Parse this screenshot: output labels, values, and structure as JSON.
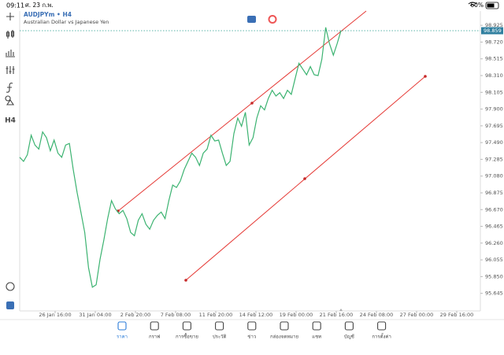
{
  "status": {
    "time": "09:11",
    "date": "ศ. 23 ก.พ.",
    "battery": "60%"
  },
  "chart_data": {
    "type": "line",
    "symbol": "AUDJPYm • H4",
    "description": "Australian Dollar vs Japanese Yen",
    "timeframe": "H4",
    "color": "#3cb371",
    "values": [
      97.31,
      97.26,
      97.34,
      97.58,
      97.46,
      97.41,
      97.62,
      97.55,
      97.39,
      97.52,
      97.36,
      97.31,
      97.46,
      97.48,
      97.16,
      96.88,
      96.64,
      96.39,
      95.96,
      95.72,
      95.75,
      96.06,
      96.3,
      96.56,
      96.78,
      96.68,
      96.62,
      96.66,
      96.56,
      96.39,
      96.35,
      96.54,
      96.62,
      96.49,
      96.43,
      96.54,
      96.6,
      96.64,
      96.56,
      96.78,
      96.97,
      96.94,
      97.02,
      97.16,
      97.26,
      97.36,
      97.31,
      97.21,
      97.36,
      97.41,
      97.58,
      97.51,
      97.52,
      97.36,
      97.21,
      97.26,
      97.6,
      97.79,
      97.69,
      97.86,
      97.46,
      97.55,
      97.79,
      97.94,
      97.89,
      98.03,
      98.13,
      98.06,
      98.1,
      98.03,
      98.13,
      98.08,
      98.27,
      98.46,
      98.39,
      98.32,
      98.42,
      98.32,
      98.31,
      98.51,
      98.9,
      98.7,
      98.56,
      98.7,
      98.86
    ],
    "last_price": 98.859,
    "ylim": [
      95.43,
      99.1
    ],
    "yticks": [
      98.925,
      {
        "value": 98.72,
        "label": "98.720"
      },
      98.515,
      {
        "value": 98.31,
        "label": "98.310"
      },
      98.105,
      {
        "value": 97.9,
        "label": "97.900"
      },
      97.695,
      {
        "value": 97.49,
        "label": "97.490"
      },
      97.285,
      {
        "value": 97.08,
        "label": "97.080"
      },
      96.875,
      {
        "value": 96.67,
        "label": "96.670"
      },
      96.465,
      {
        "value": 96.26,
        "label": "96.260"
      },
      96.055,
      {
        "value": 95.85,
        "label": "95.850"
      },
      95.645
    ],
    "x_labels": [
      "26 Jan 16:00",
      "31 Jan 04:00",
      "2 Feb 20:00",
      "7 Feb 08:00",
      "11 Feb 20:00",
      "14 Feb 12:00",
      "19 Feb 00:00",
      "21 Feb 16:00",
      "24 Feb 08:00",
      "27 Feb 00:00",
      "29 Feb 16:00"
    ]
  },
  "nav": [
    "ราคา",
    "กราฟ",
    "การซื้อขาย",
    "ประวัติ",
    "ข่าว",
    "กล่องจดหมาย",
    "แชท",
    "บัญชี",
    "การตั้งค่า"
  ]
}
